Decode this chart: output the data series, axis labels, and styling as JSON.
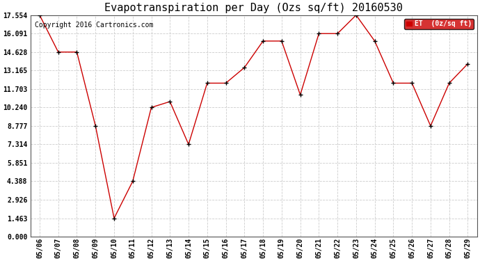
{
  "title": "Evapotranspiration per Day (Ozs sq/ft) 20160530",
  "copyright": "Copyright 2016 Cartronics.com",
  "legend_label": "ET  (0z/sq ft)",
  "x_labels": [
    "05/06",
    "05/07",
    "05/08",
    "05/09",
    "05/10",
    "05/11",
    "05/12",
    "05/13",
    "05/14",
    "05/15",
    "05/16",
    "05/17",
    "05/18",
    "05/19",
    "05/20",
    "05/21",
    "05/22",
    "05/23",
    "05/24",
    "05/25",
    "05/26",
    "05/27",
    "05/28",
    "05/29"
  ],
  "y_values": [
    17.554,
    14.628,
    14.628,
    8.777,
    1.463,
    4.388,
    10.24,
    10.703,
    7.314,
    12.165,
    12.165,
    13.4,
    15.5,
    15.5,
    11.24,
    16.091,
    16.091,
    17.554,
    15.5,
    12.165,
    12.165,
    8.777,
    12.165,
    13.7
  ],
  "y_ticks": [
    0.0,
    1.463,
    2.926,
    4.388,
    5.851,
    7.314,
    8.777,
    10.24,
    11.703,
    13.165,
    14.628,
    16.091,
    17.554
  ],
  "line_color": "#cc0000",
  "marker_color": "#000000",
  "grid_color": "#cccccc",
  "bg_color": "#ffffff",
  "legend_bg": "#cc0000",
  "legend_text_color": "#ffffff",
  "title_fontsize": 11,
  "tick_fontsize": 7,
  "copyright_fontsize": 7,
  "figwidth": 6.9,
  "figheight": 3.75,
  "dpi": 100
}
